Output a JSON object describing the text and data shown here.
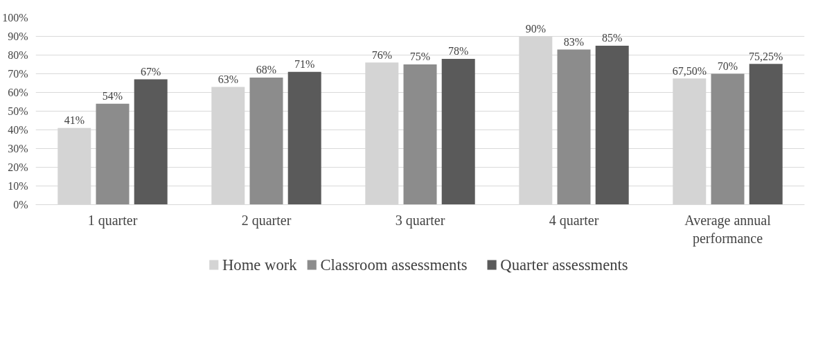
{
  "chart_data": {
    "type": "bar",
    "categories": [
      "1 quarter",
      "2 quarter",
      "3 quarter",
      "4 quarter",
      "Average annual performance"
    ],
    "series": [
      {
        "name": "Home work",
        "color": "#d4d4d4",
        "values": [
          41,
          63,
          76,
          90,
          67.5
        ],
        "value_labels": [
          "41%",
          "63%",
          "76%",
          "90%",
          "67,50%"
        ]
      },
      {
        "name": "Classroom assessments",
        "color": "#8c8c8c",
        "values": [
          54,
          68,
          75,
          83,
          70
        ],
        "value_labels": [
          "54%",
          "68%",
          "75%",
          "83%",
          "70%"
        ]
      },
      {
        "name": "Quarter assessments",
        "color": "#5a5a5a",
        "values": [
          67,
          71,
          78,
          85,
          75.25
        ],
        "value_labels": [
          "67%",
          "71%",
          "78%",
          "85%",
          "75,25%"
        ]
      }
    ],
    "ylim": [
      0,
      100
    ],
    "yticks": [
      {
        "value": 0,
        "label": "0%"
      },
      {
        "value": 10,
        "label": "10%"
      },
      {
        "value": 20,
        "label": "20%"
      },
      {
        "value": 30,
        "label": "30%"
      },
      {
        "value": 40,
        "label": "40%"
      },
      {
        "value": 50,
        "label": "50%"
      },
      {
        "value": 60,
        "label": "60%"
      },
      {
        "value": 70,
        "label": "70%"
      },
      {
        "value": 80,
        "label": "80%"
      },
      {
        "value": 90,
        "label": "90%"
      },
      {
        "value": 100,
        "label": "100%"
      }
    ],
    "grid": "y",
    "legend": "bottom"
  }
}
